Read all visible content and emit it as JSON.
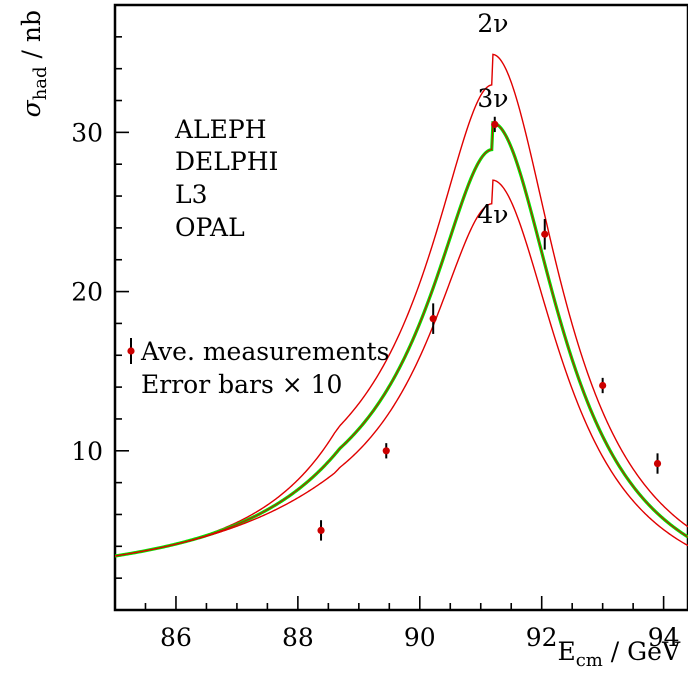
{
  "chart_data": {
    "type": "line",
    "xlabel_main": "E",
    "xlabel_sub": "cm",
    "xlabel_unit": " / GeV",
    "ylabel_main": "σ",
    "ylabel_sub": "had",
    "ylabel_unit": " / nb",
    "xlim": [
      85.0,
      94.4
    ],
    "ylim": [
      0.0,
      38.0
    ],
    "x_ticks": [
      86,
      88,
      90,
      92,
      94
    ],
    "y_ticks": [
      10,
      20,
      30
    ],
    "grid": false,
    "experiments": [
      "ALEPH",
      "DELPHI",
      "L3",
      "OPAL"
    ],
    "legend_marker_label": "Ave. measurements",
    "legend_note": "Error bars × 10",
    "series": [
      {
        "name": "2ν",
        "color": "#e00000",
        "width": 1.4,
        "peak": 34.9,
        "mass": 91.19,
        "gamma": 2.495
      },
      {
        "name": "3ν",
        "color": "#00e600",
        "width": 3.2,
        "peak": 30.6,
        "mass": 91.19,
        "gamma": 2.495
      },
      {
        "name": "3ν",
        "color": "#d40000",
        "width": 1.0,
        "peak": 30.6,
        "mass": 91.19,
        "gamma": 2.495
      },
      {
        "name": "4ν",
        "color": "#e00000",
        "width": 1.4,
        "peak": 27.0,
        "mass": 91.19,
        "gamma": 2.495
      }
    ],
    "curve_labels": [
      {
        "text": "2ν",
        "x": 91.2,
        "y": 36.3
      },
      {
        "text": "3ν",
        "x": 91.2,
        "y": 31.6
      },
      {
        "text": "4ν",
        "x": 91.2,
        "y": 24.3
      }
    ],
    "measurements": [
      {
        "x": 88.38,
        "y": 5.0,
        "err": 0.4
      },
      {
        "x": 89.45,
        "y": 10.0,
        "err": 0.3
      },
      {
        "x": 90.22,
        "y": 18.3,
        "err": 0.6
      },
      {
        "x": 91.23,
        "y": 30.5,
        "err": 0.3
      },
      {
        "x": 92.05,
        "y": 23.6,
        "err": 0.6
      },
      {
        "x": 93.0,
        "y": 14.1,
        "err": 0.3
      },
      {
        "x": 93.9,
        "y": 9.2,
        "err": 0.4
      }
    ],
    "colors": {
      "marker": "#cc0000"
    }
  }
}
